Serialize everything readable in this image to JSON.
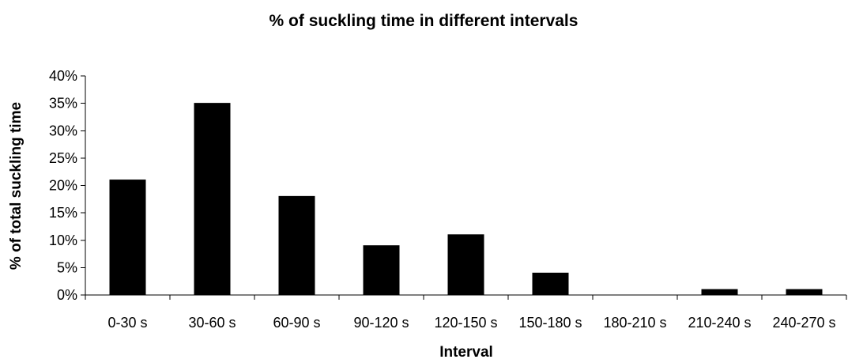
{
  "chart_data": {
    "type": "bar",
    "title": "% of suckling time in different intervals",
    "xlabel": "Interval",
    "ylabel": "% of total suckling time",
    "categories": [
      "0-30 s",
      "30-60 s",
      "60-90 s",
      "90-120 s",
      "120-150 s",
      "150-180 s",
      "180-210 s",
      "210-240 s",
      "240-270 s"
    ],
    "values": [
      21,
      35,
      18,
      9,
      11,
      4,
      0,
      1,
      1
    ],
    "ylim": [
      0,
      40
    ],
    "yticks": [
      0,
      5,
      10,
      15,
      20,
      25,
      30,
      35,
      40
    ],
    "ytick_labels": [
      "0%",
      "5%",
      "10%",
      "15%",
      "20%",
      "25%",
      "30%",
      "35%",
      "40%"
    ],
    "grid": false,
    "legend": "none",
    "bar_color": "#000000"
  }
}
